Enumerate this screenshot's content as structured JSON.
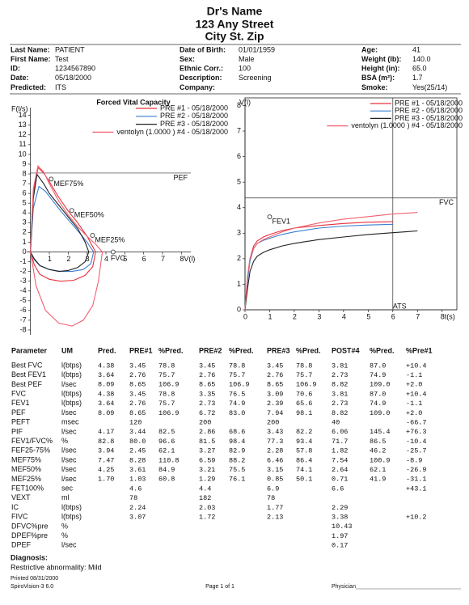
{
  "header": {
    "name": "Dr's Name",
    "street": "123 Any Street",
    "city": "City St. Zip"
  },
  "patient": {
    "rows": [
      [
        "Last Name:",
        "PATIENT",
        "Date of Birth:",
        "01/01/1959",
        "Age:",
        "41"
      ],
      [
        "First Name:",
        "Test",
        "Sex:",
        "Male",
        "Weight (lb):",
        "140.0"
      ],
      [
        "ID:",
        "1234567890",
        "Ethnic Corr.:",
        "100",
        "Height (in):",
        "65.0"
      ],
      [
        "Date:",
        "05/18/2000",
        "Description:",
        "Screening",
        "BSA (m²):",
        "1.7"
      ],
      [
        "Predicted:",
        "ITS",
        "Company:",
        null,
        "Smoke:",
        "Yes(25/14)"
      ]
    ]
  },
  "chart_data": [
    {
      "type": "line",
      "title": "Forced Vital Capacity",
      "ylabel": "F(l/s)",
      "xlim": [
        -0.2,
        8.5
      ],
      "ylim": [
        -8.5,
        14.8
      ],
      "xticks": [
        1,
        2,
        3,
        4,
        5,
        6,
        7,
        {
          "value": 8,
          "label": "8V(l)"
        }
      ],
      "yticks": [
        -8,
        -7,
        -6,
        -5,
        -4,
        -3,
        -2,
        -1,
        0,
        1,
        2,
        3,
        4,
        5,
        6,
        7,
        8,
        9,
        10,
        11,
        12,
        13,
        14
      ],
      "hlines": [
        {
          "value": 8.09,
          "label": "PEF"
        }
      ],
      "markers": [
        {
          "label": "MEF75%",
          "x": 1.1,
          "y": 7.47
        },
        {
          "label": "MEF50%",
          "x": 2.19,
          "y": 4.25
        },
        {
          "label": "MEF25%",
          "x": 3.29,
          "y": 1.7
        },
        {
          "label": "FVC",
          "x": 4.38,
          "y": 0
        }
      ],
      "series": [
        {
          "name": "PRE #1 - 05/18/2000",
          "color": "#e8303a",
          "x": [
            0,
            0.15,
            0.4,
            0.7,
            1.0,
            1.5,
            2.0,
            2.5,
            3.0,
            3.45,
            3.3,
            2.9,
            2.3,
            1.6,
            1.0,
            0.5,
            0.2,
            0
          ],
          "values": [
            0,
            6,
            8.65,
            8.1,
            7.2,
            5.6,
            4.2,
            3.0,
            1.6,
            0,
            -1.5,
            -2.4,
            -2.9,
            -3.0,
            -2.8,
            -2.3,
            -1.3,
            0
          ]
        },
        {
          "name": "PRE #2 - 05/18/2000",
          "color": "#3a7fd0",
          "x": [
            0,
            0.15,
            0.45,
            0.8,
            1.2,
            1.6,
            2.0,
            2.5,
            3.0,
            3.35,
            3.2,
            2.8,
            2.2,
            1.6,
            1.0,
            0.5,
            0.2,
            0
          ],
          "values": [
            0,
            4.5,
            6.72,
            6.2,
            5.2,
            4.2,
            3.3,
            2.2,
            1.0,
            0,
            -1.2,
            -1.8,
            -2.0,
            -2.0,
            -1.8,
            -1.4,
            -0.8,
            0
          ]
        },
        {
          "name": "PRE #3 - 05/18/2000",
          "color": "#202020",
          "x": [
            0,
            0.15,
            0.35,
            0.7,
            1.0,
            1.5,
            2.0,
            2.5,
            2.9,
            3.09,
            2.9,
            2.5,
            2.0,
            1.5,
            1.0,
            0.5,
            0.2,
            0
          ],
          "values": [
            0,
            5.5,
            7.94,
            7.0,
            6.0,
            4.8,
            3.6,
            2.4,
            1.0,
            0,
            -1.0,
            -1.6,
            -1.9,
            -2.0,
            -1.8,
            -1.4,
            -0.7,
            0
          ]
        },
        {
          "name": "ventolyn (1.0000 ) #4 - 05/18/2000",
          "color": "#f06070",
          "x": [
            0,
            0.15,
            0.4,
            0.7,
            1.0,
            1.5,
            2.0,
            2.5,
            3.0,
            3.5,
            3.81,
            3.6,
            3.3,
            2.8,
            2.2,
            1.5,
            0.8,
            0.3,
            0
          ],
          "values": [
            0,
            6.5,
            8.82,
            8.2,
            7.0,
            5.2,
            3.8,
            2.6,
            1.6,
            0.7,
            0,
            -3.0,
            -5.5,
            -7.0,
            -7.6,
            -7.3,
            -6.0,
            -3.5,
            0
          ]
        }
      ]
    },
    {
      "type": "line",
      "ylabel": "V(l)",
      "xlim": [
        0,
        8.6
      ],
      "ylim": [
        0,
        8.3
      ],
      "xticks": [
        0,
        1,
        2,
        3,
        4,
        5,
        6,
        7,
        {
          "value": 8,
          "label": "8t(s)"
        }
      ],
      "yticks": [
        0,
        1,
        2,
        3,
        4,
        5,
        6,
        7,
        8
      ],
      "hlines": [
        {
          "value": 4.38,
          "label": "FVC"
        }
      ],
      "vlines": [
        {
          "value": 6,
          "label": "ATS"
        }
      ],
      "markers": [
        {
          "label": "FEV1",
          "x": 1,
          "y": 3.64
        }
      ],
      "series": [
        {
          "name": "PRE #1 - 05/18/2000",
          "color": "#e8303a",
          "x": [
            0,
            0.1,
            0.2,
            0.35,
            0.5,
            0.75,
            1,
            1.5,
            2,
            3,
            4,
            5,
            6
          ],
          "values": [
            0,
            1.2,
            2.0,
            2.5,
            2.7,
            2.85,
            2.95,
            3.1,
            3.2,
            3.3,
            3.38,
            3.43,
            3.45
          ]
        },
        {
          "name": "PRE #2 - 05/18/2000",
          "color": "#3a7fd0",
          "x": [
            0,
            0.1,
            0.2,
            0.35,
            0.5,
            0.75,
            1,
            1.5,
            2,
            3,
            4,
            5,
            6
          ],
          "values": [
            0,
            1.1,
            1.9,
            2.4,
            2.6,
            2.72,
            2.8,
            2.95,
            3.05,
            3.2,
            3.28,
            3.32,
            3.35
          ]
        },
        {
          "name": "PRE #3 - 05/18/2000",
          "color": "#202020",
          "x": [
            0,
            0.1,
            0.2,
            0.35,
            0.5,
            0.75,
            1,
            1.5,
            2,
            3,
            4,
            5,
            6,
            7
          ],
          "values": [
            0,
            0.8,
            1.5,
            1.9,
            2.1,
            2.25,
            2.35,
            2.5,
            2.6,
            2.75,
            2.85,
            2.95,
            3.02,
            3.09
          ]
        },
        {
          "name": "ventolyn (1.0000 ) #4 - 05/18/2000",
          "color": "#f06070",
          "x": [
            0,
            0.1,
            0.2,
            0.35,
            0.5,
            0.75,
            1,
            1.5,
            2,
            3,
            4,
            5,
            6,
            7
          ],
          "values": [
            0,
            1.3,
            2.0,
            2.4,
            2.6,
            2.75,
            2.85,
            3.05,
            3.2,
            3.4,
            3.55,
            3.65,
            3.75,
            3.81
          ]
        }
      ]
    }
  ],
  "table": {
    "columns": [
      "Parameter",
      "UM",
      "Pred.",
      "PRE#1",
      "%Pred.",
      "PRE#2",
      "%Pred.",
      "PRE#3",
      "%Pred.",
      "POST#4",
      "%Pred.",
      "%Pre#1"
    ],
    "column_colors": [
      "#111",
      "#111",
      "#111",
      "#e02828",
      "#e02828",
      "#2a6cc4",
      "#2a6cc4",
      "#111",
      "#111",
      "#e02828",
      "#e02828",
      "#e02828"
    ],
    "rows": [
      [
        "Best FVC",
        "l(btps)",
        "4.38",
        "3.45",
        "78.8",
        "3.45",
        "78.8",
        "3.45",
        "78.8",
        "3.81",
        "87.0",
        "+10.4"
      ],
      [
        "Best FEV1",
        "l(btps)",
        "3.64",
        "2.76",
        "75.7",
        "2.76",
        "75.7",
        "2.76",
        "75.7",
        "2.73",
        "74.9",
        "-1.1"
      ],
      [
        "Best PEF",
        "l/sec",
        "8.09",
        "8.65",
        "106.9",
        "8.65",
        "106.9",
        "8.65",
        "106.9",
        "8.82",
        "109.0",
        "+2.0"
      ],
      [
        "FVC",
        "l(btps)",
        "4.38",
        "3.45",
        "78.8",
        "3.35",
        "76.5",
        "3.09",
        "70.6",
        "3.81",
        "87.0",
        "+10.4"
      ],
      [
        "FEV1",
        "l(btps)",
        "3.64",
        "2.76",
        "75.7",
        "2.73",
        "74.9",
        "2.39",
        "65.6",
        "2.73",
        "74.9",
        "-1.1"
      ],
      [
        "PEF",
        "l/sec",
        "8.09",
        "8.65",
        "106.9",
        "6.72",
        "83.0",
        "7.94",
        "98.1",
        "8.82",
        "109.0",
        "+2.0"
      ],
      [
        "PEFT",
        "msec",
        null,
        "120",
        null,
        "200",
        null,
        "200",
        null,
        "40",
        null,
        "-66.7"
      ],
      [
        "PIF",
        "l/sec",
        "4.17",
        "3.44",
        "82.5",
        "2.86",
        "68.6",
        "3.43",
        "82.2",
        "6.06",
        "145.4",
        "+76.3"
      ],
      [
        "FEV1/FVC%",
        "%",
        "82.8",
        "80.0",
        "96.6",
        "81.5",
        "98.4",
        "77.3",
        "93.4",
        "71.7",
        "86.5",
        "-10.4"
      ],
      [
        "FEF25-75%",
        "l/sec",
        "3.94",
        "2.45",
        "62.1",
        "3.27",
        "82.9",
        "2.28",
        "57.8",
        "1.82",
        "46.2",
        "-25.7"
      ],
      [
        "MEF75%",
        "l/sec",
        "7.47",
        "8.28",
        "110.8",
        "6.59",
        "88.2",
        "6.46",
        "86.4",
        "7.54",
        "100.9",
        "-8.9"
      ],
      [
        "MEF50%",
        "l/sec",
        "4.25",
        "3.61",
        "84.9",
        "3.21",
        "75.5",
        "3.15",
        "74.1",
        "2.64",
        "62.1",
        "-26.9"
      ],
      [
        "MEF25%",
        "l/sec",
        "1.70",
        "1.03",
        "60.8",
        "1.29",
        "76.1",
        "0.85",
        "50.1",
        "0.71",
        "41.9",
        "-31.1"
      ],
      [
        "FET100%",
        "sec",
        null,
        "4.6",
        null,
        "4.4",
        null,
        "6.9",
        null,
        "6.6",
        null,
        "+43.1"
      ],
      [
        "VEXT",
        "ml",
        null,
        "78",
        null,
        "182",
        null,
        "78",
        null,
        null,
        null,
        null
      ],
      [
        "IC",
        "l(btps)",
        null,
        "2.24",
        null,
        "2.03",
        null,
        "1.77",
        null,
        "2.29",
        null,
        null
      ],
      [
        "FIVC",
        "l(btps)",
        null,
        "3.07",
        null,
        "1.72",
        null,
        "2.13",
        null,
        "3.38",
        null,
        "+10.2"
      ],
      [
        "DFVC%pre",
        "%",
        null,
        null,
        null,
        null,
        null,
        null,
        null,
        "10.43",
        null,
        null
      ],
      [
        "DPEF%pre",
        "%",
        null,
        null,
        null,
        null,
        null,
        null,
        null,
        "1.97",
        null,
        null
      ],
      [
        "DPEF",
        "l/sec",
        null,
        null,
        null,
        null,
        null,
        null,
        null,
        "0.17",
        null,
        null
      ]
    ]
  },
  "diagnosis": {
    "title": "Diagnosis:",
    "text": "Restrictive abnormality: Mild"
  },
  "footer": {
    "printed": "Printed 08/31/2000",
    "software": "SpiroVision-3 6.0",
    "page": "Page 1 of 1",
    "physician": "Physician"
  }
}
